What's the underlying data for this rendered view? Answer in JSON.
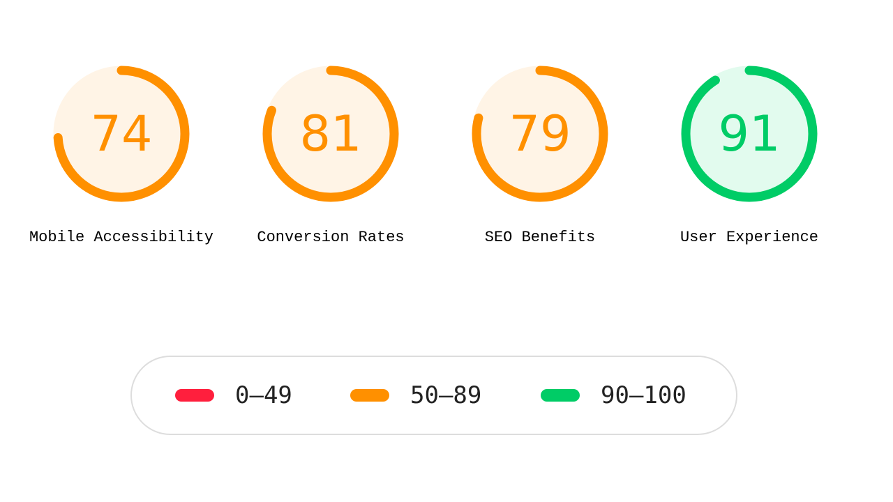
{
  "gauges": [
    {
      "label": "Mobile Accessibility",
      "score": "74",
      "value": 74,
      "band": "average"
    },
    {
      "label": "Conversion Rates",
      "score": "81",
      "value": 81,
      "band": "average"
    },
    {
      "label": "SEO Benefits",
      "score": "79",
      "value": 79,
      "band": "average"
    },
    {
      "label": "User Experience",
      "score": "91",
      "value": 91,
      "band": "pass"
    }
  ],
  "legend": {
    "items": [
      {
        "label": "0–49",
        "band": "fail"
      },
      {
        "label": "50–89",
        "band": "average"
      },
      {
        "label": "90–100",
        "band": "pass"
      }
    ]
  },
  "colors": {
    "fail": "#ff1f3d",
    "average": "#ff9000",
    "average_fill": "#fff4e6",
    "pass": "#00cc66",
    "pass_fill": "#e2fbee",
    "text_dark": "#222222",
    "border": "#dddddd"
  }
}
